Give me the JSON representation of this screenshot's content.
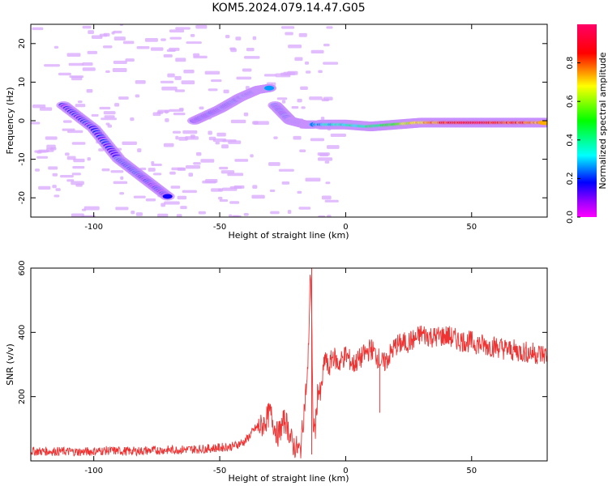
{
  "figure": {
    "title": "KOM5.2024.079.14.47.G05"
  },
  "chart_data": [
    {
      "type": "heatmap",
      "xlabel": "Height of straight line (km)",
      "ylabel": "Frequency (Hz)",
      "xlim": [
        -125,
        80
      ],
      "ylim": [
        -25,
        25
      ],
      "xticks": [
        -100,
        -50,
        0,
        50
      ],
      "xtick_labels": [
        "-100",
        "-50",
        "0",
        "50"
      ],
      "yticks": [
        -20,
        -10,
        0,
        10,
        20
      ],
      "ytick_labels": [
        "-20",
        "-10",
        "0",
        "10",
        "20"
      ],
      "colorbar": {
        "label": "Normalized spectral amplitude",
        "range": [
          0,
          1
        ],
        "ticks": [
          0,
          0.2,
          0.4,
          0.6,
          0.8
        ],
        "tick_labels": [
          "0.0",
          "0.2",
          "0.4",
          "0.6",
          "0.8"
        ],
        "colormap": "gist_rainbow_r"
      },
      "features": [
        {
          "name": "descending track",
          "x": [
            -112,
            -100,
            -90,
            -80,
            -70
          ],
          "y": [
            4,
            -2,
            -10,
            -15,
            -20
          ],
          "amplitude": [
            0.15,
            0.18,
            0.2,
            0.18,
            0.15
          ]
        },
        {
          "name": "ascending track",
          "x": [
            -60,
            -50,
            -42,
            -35,
            -30
          ],
          "y": [
            0,
            3,
            6,
            8,
            8.5
          ],
          "amplitude": [
            0.18,
            0.22,
            0.25,
            0.3,
            0.35
          ]
        },
        {
          "name": "transition",
          "x": [
            -28,
            -22,
            -16,
            -12
          ],
          "y": [
            4,
            0,
            -1,
            -1
          ],
          "amplitude": [
            0.2,
            0.25,
            0.3,
            0.3
          ]
        },
        {
          "name": "steady band",
          "x": [
            -10,
            0,
            10,
            20,
            30,
            40,
            50,
            60,
            70,
            80
          ],
          "y": [
            -1,
            -1,
            -1.5,
            -1,
            -0.5,
            -0.5,
            -0.5,
            -0.5,
            -0.5,
            -0.5
          ],
          "amplitude": [
            0.3,
            0.35,
            0.4,
            0.5,
            0.7,
            0.8,
            0.9,
            0.85,
            0.8,
            0.75
          ]
        }
      ],
      "grid": false
    },
    {
      "type": "line",
      "xlabel": "Height of straight line (km)",
      "ylabel": "SNR (v/v)",
      "xlim": [
        -125,
        80
      ],
      "ylim": [
        0,
        600
      ],
      "xticks": [
        -100,
        -50,
        0,
        50
      ],
      "xtick_labels": [
        "-100",
        "-50",
        "0",
        "50"
      ],
      "yticks": [
        200,
        400,
        600
      ],
      "ytick_labels": [
        "200",
        "400",
        "600"
      ],
      "series": [
        {
          "color": "#ee3333",
          "x": [
            -125,
            -115,
            -105,
            -95,
            -85,
            -75,
            -65,
            -55,
            -45,
            -40,
            -36,
            -33,
            -30,
            -27,
            -24,
            -21,
            -18,
            -16,
            -15,
            -14,
            -13.5,
            -13,
            -12,
            -11,
            -10,
            -9,
            -8,
            -7,
            -5,
            -3,
            0,
            3,
            6,
            10,
            15,
            20,
            25,
            28,
            30,
            35,
            40,
            45,
            50,
            55,
            60,
            65,
            70,
            75,
            80
          ],
          "y": [
            30,
            30,
            28,
            32,
            30,
            33,
            35,
            38,
            45,
            60,
            100,
            110,
            150,
            80,
            130,
            50,
            30,
            200,
            280,
            600,
            450,
            120,
            100,
            230,
            200,
            270,
            330,
            280,
            330,
            300,
            330,
            300,
            320,
            350,
            300,
            360,
            370,
            380,
            395,
            385,
            390,
            375,
            370,
            360,
            355,
            345,
            340,
            335,
            330
          ]
        }
      ],
      "annotations": [
        {
          "x": -13.5,
          "y": 600,
          "text": "",
          "kind": "spike"
        },
        {
          "x": 13.5,
          "y": 150,
          "text": "",
          "kind": "dip"
        }
      ],
      "grid": false
    }
  ],
  "colors": {
    "line": "#ee3333",
    "axis": "#000000",
    "background": "#ffffff"
  }
}
